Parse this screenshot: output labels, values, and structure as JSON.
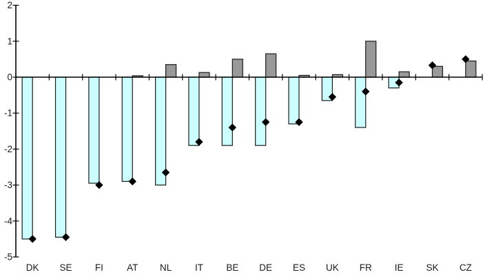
{
  "page": {
    "background": "#ffffff",
    "title": ""
  },
  "chart_data": {
    "type": "bar",
    "title": "",
    "xlabel": "",
    "ylabel": "",
    "categories": [
      "DK",
      "SE",
      "FI",
      "AT",
      "NL",
      "IT",
      "BE",
      "DE",
      "ES",
      "UK",
      "FR",
      "IE",
      "SK",
      "CZ"
    ],
    "series": [
      {
        "name": "cyan_bars",
        "type": "bar",
        "fill": "#ccffff",
        "stroke": "#1a1a1a",
        "values": [
          -4.5,
          -4.45,
          -2.95,
          -2.9,
          -3.0,
          -1.9,
          -1.9,
          -1.9,
          -1.3,
          -0.65,
          -1.4,
          -0.3,
          0,
          0
        ]
      },
      {
        "name": "gray_bars",
        "type": "bar",
        "fill": "#999999",
        "stroke": "#1a1a1a",
        "values": [
          0,
          0,
          0,
          0.04,
          0.35,
          0.13,
          0.5,
          0.65,
          0.05,
          0.07,
          1.0,
          0.15,
          0.3,
          0.45
        ]
      },
      {
        "name": "diamond_markers",
        "type": "scatter",
        "marker": "diamond",
        "fill": "#000000",
        "values": [
          -4.5,
          -4.45,
          -3.0,
          -2.9,
          -2.65,
          -1.8,
          -1.4,
          -1.25,
          -1.25,
          -0.55,
          -0.4,
          -0.15,
          0.33,
          0.5
        ]
      }
    ],
    "ylim": [
      -5,
      2
    ],
    "yticks": [
      2,
      1,
      0,
      -1,
      -2,
      -3,
      -4,
      -5
    ],
    "grid": false,
    "legend": false,
    "axis_color": "#000000",
    "label_color": "#1a1a1a"
  }
}
